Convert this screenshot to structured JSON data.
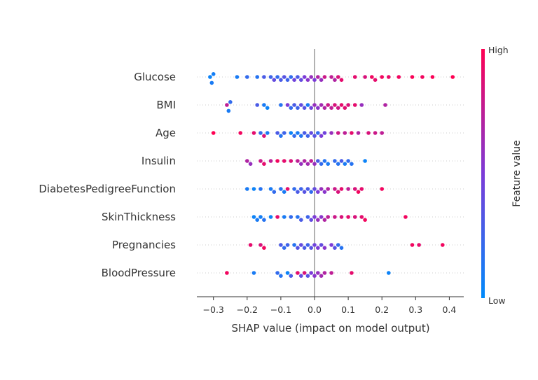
{
  "chart_data": {
    "type": "scatter",
    "subtype": "shap-beeswarm",
    "xlabel": "SHAP value (impact on model output)",
    "xlim": [
      -0.35,
      0.45
    ],
    "xticks": [
      -0.3,
      -0.2,
      -0.1,
      0.0,
      0.1,
      0.2,
      0.3,
      0.4
    ],
    "xtick_labels": [
      "−0.3",
      "−0.2",
      "−0.1",
      "0.0",
      "0.1",
      "0.2",
      "0.3",
      "0.4"
    ],
    "features": [
      "Glucose",
      "BMI",
      "Age",
      "Insulin",
      "DiabetesPedigreeFunction",
      "SkinThickness",
      "Pregnancies",
      "BloodPressure"
    ],
    "colorbar": {
      "label": "Feature value",
      "high_label": "High",
      "low_label": "Low",
      "low_color": "#008bfb",
      "high_color": "#ff0052",
      "mid_color": "#7c3bd8"
    },
    "zero_line_color": "#999999",
    "series": [
      {
        "feature": "Glucose",
        "points": [
          {
            "x": -0.31,
            "v": 0.05
          },
          {
            "x": -0.305,
            "v": 0.1
          },
          {
            "x": -0.3,
            "v": 0.08
          },
          {
            "x": -0.23,
            "v": 0.1
          },
          {
            "x": -0.2,
            "v": 0.2
          },
          {
            "x": -0.17,
            "v": 0.15
          },
          {
            "x": -0.15,
            "v": 0.3
          },
          {
            "x": -0.13,
            "v": 0.25
          },
          {
            "x": -0.12,
            "v": 0.4
          },
          {
            "x": -0.11,
            "v": 0.2
          },
          {
            "x": -0.1,
            "v": 0.3
          },
          {
            "x": -0.09,
            "v": 0.35
          },
          {
            "x": -0.08,
            "v": 0.25
          },
          {
            "x": -0.07,
            "v": 0.2
          },
          {
            "x": -0.06,
            "v": 0.45
          },
          {
            "x": -0.05,
            "v": 0.3
          },
          {
            "x": -0.04,
            "v": 0.4
          },
          {
            "x": -0.03,
            "v": 0.5
          },
          {
            "x": -0.02,
            "v": 0.55
          },
          {
            "x": -0.01,
            "v": 0.6
          },
          {
            "x": 0.0,
            "v": 0.5
          },
          {
            "x": 0.01,
            "v": 0.7
          },
          {
            "x": 0.02,
            "v": 0.6
          },
          {
            "x": 0.03,
            "v": 0.8
          },
          {
            "x": 0.05,
            "v": 0.75
          },
          {
            "x": 0.06,
            "v": 0.7
          },
          {
            "x": 0.07,
            "v": 0.85
          },
          {
            "x": 0.08,
            "v": 0.9
          },
          {
            "x": 0.12,
            "v": 0.9
          },
          {
            "x": 0.15,
            "v": 0.85
          },
          {
            "x": 0.17,
            "v": 0.95
          },
          {
            "x": 0.18,
            "v": 0.9
          },
          {
            "x": 0.2,
            "v": 0.95
          },
          {
            "x": 0.22,
            "v": 0.92
          },
          {
            "x": 0.25,
            "v": 0.95
          },
          {
            "x": 0.29,
            "v": 0.98
          },
          {
            "x": 0.32,
            "v": 0.95
          },
          {
            "x": 0.35,
            "v": 0.98
          },
          {
            "x": 0.41,
            "v": 1.0
          }
        ]
      },
      {
        "feature": "BMI",
        "points": [
          {
            "x": -0.26,
            "v": 0.75
          },
          {
            "x": -0.255,
            "v": 0.1
          },
          {
            "x": -0.25,
            "v": 0.2
          },
          {
            "x": -0.17,
            "v": 0.3
          },
          {
            "x": -0.15,
            "v": 0.1
          },
          {
            "x": -0.14,
            "v": 0.05
          },
          {
            "x": -0.1,
            "v": 0.15
          },
          {
            "x": -0.08,
            "v": 0.5
          },
          {
            "x": -0.07,
            "v": 0.2
          },
          {
            "x": -0.06,
            "v": 0.3
          },
          {
            "x": -0.05,
            "v": 0.25
          },
          {
            "x": -0.04,
            "v": 0.4
          },
          {
            "x": -0.03,
            "v": 0.35
          },
          {
            "x": -0.02,
            "v": 0.1
          },
          {
            "x": -0.01,
            "v": 0.45
          },
          {
            "x": 0.0,
            "v": 0.6
          },
          {
            "x": 0.01,
            "v": 0.55
          },
          {
            "x": 0.02,
            "v": 0.65
          },
          {
            "x": 0.03,
            "v": 0.7
          },
          {
            "x": 0.04,
            "v": 0.8
          },
          {
            "x": 0.05,
            "v": 0.75
          },
          {
            "x": 0.06,
            "v": 0.85
          },
          {
            "x": 0.07,
            "v": 0.8
          },
          {
            "x": 0.08,
            "v": 0.9
          },
          {
            "x": 0.09,
            "v": 0.88
          },
          {
            "x": 0.1,
            "v": 0.85
          },
          {
            "x": 0.12,
            "v": 0.9
          },
          {
            "x": 0.14,
            "v": 0.6
          },
          {
            "x": 0.21,
            "v": 0.7
          }
        ]
      },
      {
        "feature": "Age",
        "points": [
          {
            "x": -0.3,
            "v": 1.0
          },
          {
            "x": -0.22,
            "v": 0.95
          },
          {
            "x": -0.18,
            "v": 0.9
          },
          {
            "x": -0.16,
            "v": 0.2
          },
          {
            "x": -0.15,
            "v": 0.85
          },
          {
            "x": -0.14,
            "v": 0.1
          },
          {
            "x": -0.11,
            "v": 0.3
          },
          {
            "x": -0.1,
            "v": 0.15
          },
          {
            "x": -0.09,
            "v": 0.25
          },
          {
            "x": -0.07,
            "v": 0.05
          },
          {
            "x": -0.06,
            "v": 0.2
          },
          {
            "x": -0.05,
            "v": 0.1
          },
          {
            "x": -0.04,
            "v": 0.15
          },
          {
            "x": -0.03,
            "v": 0.3
          },
          {
            "x": -0.02,
            "v": 0.25
          },
          {
            "x": -0.01,
            "v": 0.4
          },
          {
            "x": 0.0,
            "v": 0.35
          },
          {
            "x": 0.01,
            "v": 0.2
          },
          {
            "x": 0.02,
            "v": 0.5
          },
          {
            "x": 0.03,
            "v": 0.45
          },
          {
            "x": 0.05,
            "v": 0.6
          },
          {
            "x": 0.07,
            "v": 0.8
          },
          {
            "x": 0.09,
            "v": 0.75
          },
          {
            "x": 0.11,
            "v": 0.9
          },
          {
            "x": 0.13,
            "v": 0.7
          },
          {
            "x": 0.16,
            "v": 0.85
          },
          {
            "x": 0.18,
            "v": 0.8
          },
          {
            "x": 0.2,
            "v": 0.75
          }
        ]
      },
      {
        "feature": "Insulin",
        "points": [
          {
            "x": -0.2,
            "v": 0.7
          },
          {
            "x": -0.19,
            "v": 0.6
          },
          {
            "x": -0.16,
            "v": 0.8
          },
          {
            "x": -0.15,
            "v": 0.9
          },
          {
            "x": -0.13,
            "v": 0.75
          },
          {
            "x": -0.11,
            "v": 0.95
          },
          {
            "x": -0.09,
            "v": 0.9
          },
          {
            "x": -0.07,
            "v": 0.85
          },
          {
            "x": -0.05,
            "v": 0.75
          },
          {
            "x": -0.04,
            "v": 0.6
          },
          {
            "x": -0.03,
            "v": 0.7
          },
          {
            "x": -0.02,
            "v": 0.65
          },
          {
            "x": -0.01,
            "v": 0.75
          },
          {
            "x": 0.0,
            "v": 0.6
          },
          {
            "x": 0.01,
            "v": 0.3
          },
          {
            "x": 0.02,
            "v": 0.2
          },
          {
            "x": 0.03,
            "v": 0.15
          },
          {
            "x": 0.04,
            "v": 0.1
          },
          {
            "x": 0.06,
            "v": 0.2
          },
          {
            "x": 0.07,
            "v": 0.15
          },
          {
            "x": 0.08,
            "v": 0.3
          },
          {
            "x": 0.09,
            "v": 0.1
          },
          {
            "x": 0.1,
            "v": 0.2
          },
          {
            "x": 0.11,
            "v": 0.15
          },
          {
            "x": 0.15,
            "v": 0.05
          }
        ]
      },
      {
        "feature": "DiabetesPedigreeFunction",
        "points": [
          {
            "x": -0.2,
            "v": 0.1
          },
          {
            "x": -0.18,
            "v": 0.05
          },
          {
            "x": -0.16,
            "v": 0.15
          },
          {
            "x": -0.13,
            "v": 0.1
          },
          {
            "x": -0.12,
            "v": 0.2
          },
          {
            "x": -0.1,
            "v": 0.15
          },
          {
            "x": -0.09,
            "v": 0.1
          },
          {
            "x": -0.08,
            "v": 0.9
          },
          {
            "x": -0.06,
            "v": 0.2
          },
          {
            "x": -0.05,
            "v": 0.3
          },
          {
            "x": -0.04,
            "v": 0.25
          },
          {
            "x": -0.03,
            "v": 0.35
          },
          {
            "x": -0.02,
            "v": 0.3
          },
          {
            "x": -0.01,
            "v": 0.2
          },
          {
            "x": 0.0,
            "v": 0.4
          },
          {
            "x": 0.01,
            "v": 0.5
          },
          {
            "x": 0.02,
            "v": 0.6
          },
          {
            "x": 0.03,
            "v": 0.55
          },
          {
            "x": 0.04,
            "v": 0.7
          },
          {
            "x": 0.06,
            "v": 0.8
          },
          {
            "x": 0.07,
            "v": 0.85
          },
          {
            "x": 0.08,
            "v": 0.9
          },
          {
            "x": 0.1,
            "v": 0.75
          },
          {
            "x": 0.12,
            "v": 0.85
          },
          {
            "x": 0.13,
            "v": 0.95
          },
          {
            "x": 0.14,
            "v": 0.9
          },
          {
            "x": 0.2,
            "v": 0.95
          }
        ]
      },
      {
        "feature": "SkinThickness",
        "points": [
          {
            "x": -0.18,
            "v": 0.05
          },
          {
            "x": -0.17,
            "v": 0.1
          },
          {
            "x": -0.16,
            "v": 0.08
          },
          {
            "x": -0.15,
            "v": 0.15
          },
          {
            "x": -0.13,
            "v": 0.05
          },
          {
            "x": -0.11,
            "v": 0.9
          },
          {
            "x": -0.09,
            "v": 0.1
          },
          {
            "x": -0.07,
            "v": 0.2
          },
          {
            "x": -0.05,
            "v": 0.15
          },
          {
            "x": -0.04,
            "v": 0.3
          },
          {
            "x": -0.02,
            "v": 0.25
          },
          {
            "x": -0.01,
            "v": 0.4
          },
          {
            "x": 0.0,
            "v": 0.5
          },
          {
            "x": 0.01,
            "v": 0.6
          },
          {
            "x": 0.02,
            "v": 0.55
          },
          {
            "x": 0.03,
            "v": 0.7
          },
          {
            "x": 0.04,
            "v": 0.75
          },
          {
            "x": 0.06,
            "v": 0.8
          },
          {
            "x": 0.08,
            "v": 0.85
          },
          {
            "x": 0.1,
            "v": 0.9
          },
          {
            "x": 0.12,
            "v": 0.85
          },
          {
            "x": 0.14,
            "v": 0.9
          },
          {
            "x": 0.15,
            "v": 0.95
          },
          {
            "x": 0.27,
            "v": 0.95
          }
        ]
      },
      {
        "feature": "Pregnancies",
        "points": [
          {
            "x": -0.19,
            "v": 0.9
          },
          {
            "x": -0.16,
            "v": 0.85
          },
          {
            "x": -0.15,
            "v": 0.95
          },
          {
            "x": -0.1,
            "v": 0.3
          },
          {
            "x": -0.09,
            "v": 0.2
          },
          {
            "x": -0.08,
            "v": 0.25
          },
          {
            "x": -0.06,
            "v": 0.15
          },
          {
            "x": -0.05,
            "v": 0.35
          },
          {
            "x": -0.04,
            "v": 0.4
          },
          {
            "x": -0.03,
            "v": 0.3
          },
          {
            "x": -0.02,
            "v": 0.25
          },
          {
            "x": -0.01,
            "v": 0.35
          },
          {
            "x": 0.0,
            "v": 0.45
          },
          {
            "x": 0.01,
            "v": 0.5
          },
          {
            "x": 0.02,
            "v": 0.4
          },
          {
            "x": 0.03,
            "v": 0.55
          },
          {
            "x": 0.05,
            "v": 0.5
          },
          {
            "x": 0.06,
            "v": 0.35
          },
          {
            "x": 0.07,
            "v": 0.2
          },
          {
            "x": 0.08,
            "v": 0.15
          },
          {
            "x": 0.29,
            "v": 0.95
          },
          {
            "x": 0.31,
            "v": 0.9
          },
          {
            "x": 0.38,
            "v": 0.95
          }
        ]
      },
      {
        "feature": "BloodPressure",
        "points": [
          {
            "x": -0.26,
            "v": 0.95
          },
          {
            "x": -0.18,
            "v": 0.1
          },
          {
            "x": -0.11,
            "v": 0.2
          },
          {
            "x": -0.1,
            "v": 0.15
          },
          {
            "x": -0.08,
            "v": 0.05
          },
          {
            "x": -0.07,
            "v": 0.3
          },
          {
            "x": -0.05,
            "v": 0.9
          },
          {
            "x": -0.04,
            "v": 0.4
          },
          {
            "x": -0.03,
            "v": 0.85
          },
          {
            "x": -0.02,
            "v": 0.35
          },
          {
            "x": -0.01,
            "v": 0.5
          },
          {
            "x": 0.0,
            "v": 0.55
          },
          {
            "x": 0.01,
            "v": 0.6
          },
          {
            "x": 0.02,
            "v": 0.65
          },
          {
            "x": 0.03,
            "v": 0.7
          },
          {
            "x": 0.05,
            "v": 0.75
          },
          {
            "x": 0.11,
            "v": 0.9
          },
          {
            "x": 0.22,
            "v": 0.05
          }
        ]
      }
    ]
  }
}
